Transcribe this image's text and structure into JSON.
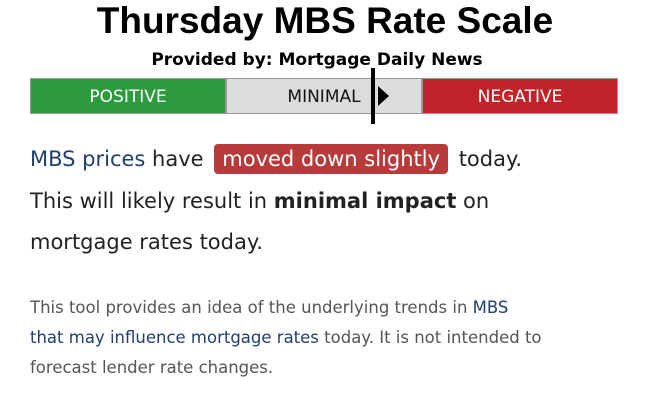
{
  "header": {
    "title": "Thursday MBS Rate Scale",
    "subtitle": "Provided by: Mortgage Daily News"
  },
  "scale": {
    "segments": [
      "POSITIVE",
      "MINIMAL",
      "NEGATIVE"
    ]
  },
  "message": {
    "lines": [
      [
        "MBS prices",
        " have ",
        "moved down slightly",
        " today."
      ],
      [
        "This will likely result in ",
        "minimal impact",
        " on"
      ],
      [
        "mortgage rates today."
      ]
    ]
  },
  "note": {
    "lines": [
      [
        "This tool provides an idea of the underlying trends in ",
        "MBS"
      ],
      [
        "that may influence mortgage rates",
        " today. It is not intended to"
      ],
      [
        "forecast lender rate changes."
      ]
    ]
  }
}
